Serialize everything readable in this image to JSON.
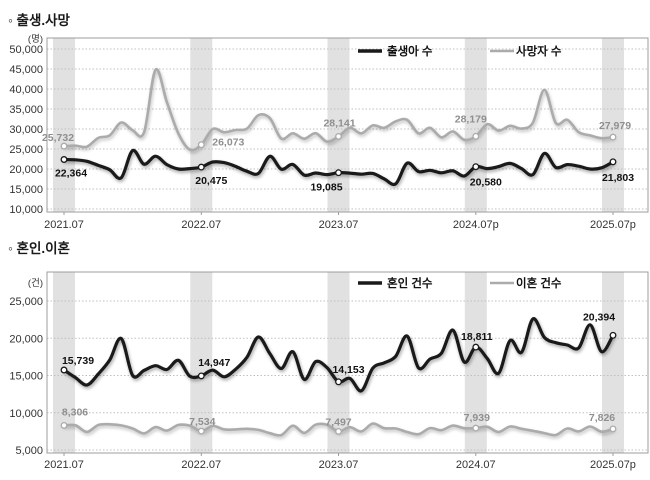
{
  "colors": {
    "line_primary": "#1a1a1a",
    "line_secondary": "#ababab",
    "band": "#e1e1e1",
    "grid": "#c0c0c0",
    "border": "#9c9c9c",
    "text": "#333333",
    "label_secondary": "#8f8f8f"
  },
  "chart_data": [
    {
      "type": "line",
      "heading": "◦ 출생.사망",
      "title": "출생.사망",
      "unit_label": "(명)",
      "ylim": [
        10000,
        50000
      ],
      "y_tick_values": [
        50000,
        45000,
        40000,
        35000,
        30000,
        25000,
        20000,
        15000,
        10000
      ],
      "grid": "dotted-horizontal",
      "legend_position": "top-inside",
      "x": [
        "2021.07",
        "2021.08",
        "2021.09",
        "2021.10",
        "2021.11",
        "2021.12",
        "2022.01",
        "2022.02",
        "2022.03",
        "2022.04",
        "2022.05",
        "2022.06",
        "2022.07",
        "2022.08",
        "2022.09",
        "2022.10",
        "2022.11",
        "2022.12",
        "2023.01",
        "2023.02",
        "2023.03",
        "2023.04",
        "2023.05",
        "2023.06",
        "2023.07",
        "2023.08",
        "2023.09",
        "2023.10",
        "2023.11",
        "2023.12",
        "2024.01",
        "2024.02",
        "2024.03",
        "2024.04",
        "2024.05",
        "2024.06",
        "2024.07",
        "2024.08",
        "2024.09",
        "2024.10",
        "2024.11",
        "2024.12",
        "2025.01",
        "2025.02",
        "2025.03",
        "2025.04",
        "2025.05",
        "2025.06",
        "2025.07"
      ],
      "x_tick_labels": [
        "2021.07",
        "2022.07",
        "2023.07",
        "2024.07p",
        "2025.07p"
      ],
      "x_tick_indices": [
        0,
        12,
        24,
        36,
        48
      ],
      "highlight_band_indices": [
        0,
        12,
        24,
        36,
        48
      ],
      "legend": [
        {
          "label": "출생아 수",
          "role": "primary"
        },
        {
          "label": "사망자 수",
          "role": "secondary"
        }
      ],
      "series": [
        {
          "name": "출생아 수",
          "role": "primary",
          "values": [
            22364,
            22290,
            21920,
            20900,
            19800,
            17800,
            24598,
            21200,
            23200,
            21100,
            20000,
            20100,
            20475,
            21750,
            21600,
            20650,
            19430,
            18900,
            23180,
            19940,
            21140,
            18480,
            18990,
            18610,
            19085,
            18980,
            18710,
            18900,
            17530,
            16300,
            21440,
            19360,
            19670,
            19050,
            19550,
            18240,
            20580,
            20100,
            20600,
            21400,
            20100,
            18600,
            23900,
            20400,
            21100,
            20700,
            20000,
            20300,
            21803
          ]
        },
        {
          "name": "사망자 수",
          "role": "secondary",
          "values": [
            25732,
            25820,
            25570,
            27780,
            28430,
            31630,
            29690,
            29190,
            44800,
            36700,
            28860,
            24850,
            26073,
            30000,
            29200,
            29760,
            30110,
            33440,
            32700,
            27600,
            28920,
            27580,
            28960,
            26820,
            28141,
            30300,
            28900,
            30900,
            30300,
            31900,
            32300,
            28900,
            30300,
            27900,
            29400,
            27300,
            28179,
            31200,
            29600,
            30800,
            30100,
            31600,
            39800,
            31500,
            32300,
            29200,
            28400,
            27700,
            27979
          ]
        }
      ],
      "point_labels": [
        {
          "series": 1,
          "index": 0,
          "text": "25,732"
        },
        {
          "series": 0,
          "index": 0,
          "text": "22,364"
        },
        {
          "series": 1,
          "index": 12,
          "text": "26,073"
        },
        {
          "series": 0,
          "index": 12,
          "text": "20,475"
        },
        {
          "series": 1,
          "index": 24,
          "text": "28,141"
        },
        {
          "series": 0,
          "index": 24,
          "text": "19,085"
        },
        {
          "series": 1,
          "index": 36,
          "text": "28,179"
        },
        {
          "series": 0,
          "index": 36,
          "text": "20,580"
        },
        {
          "series": 1,
          "index": 48,
          "text": "27,979"
        },
        {
          "series": 0,
          "index": 48,
          "text": "21,803"
        }
      ]
    },
    {
      "type": "line",
      "heading": "◦ 혼인.이혼",
      "title": "혼인.이혼",
      "unit_label": "(건)",
      "ylim": [
        5000,
        25000
      ],
      "y_tick_values": [
        25000,
        20000,
        15000,
        10000,
        5000
      ],
      "grid": "dotted-horizontal",
      "legend_position": "top-inside",
      "x": [
        "2021.07",
        "2021.08",
        "2021.09",
        "2021.10",
        "2021.11",
        "2021.12",
        "2022.01",
        "2022.02",
        "2022.03",
        "2022.04",
        "2022.05",
        "2022.06",
        "2022.07",
        "2022.08",
        "2022.09",
        "2022.10",
        "2022.11",
        "2022.12",
        "2023.01",
        "2023.02",
        "2023.03",
        "2023.04",
        "2023.05",
        "2023.06",
        "2023.07",
        "2023.08",
        "2023.09",
        "2023.10",
        "2023.11",
        "2023.12",
        "2024.01",
        "2024.02",
        "2024.03",
        "2024.04",
        "2024.05",
        "2024.06",
        "2024.07",
        "2024.08",
        "2024.09",
        "2024.10",
        "2024.11",
        "2024.12",
        "2025.01",
        "2025.02",
        "2025.03",
        "2025.04",
        "2025.05",
        "2025.06",
        "2025.07"
      ],
      "x_tick_labels": [
        "2021.07",
        "2022.07",
        "2023.07",
        "2024.07",
        "2025.07p"
      ],
      "x_tick_indices": [
        0,
        12,
        24,
        36,
        48
      ],
      "highlight_band_indices": [
        0,
        12,
        24,
        36,
        48
      ],
      "legend": [
        {
          "label": "혼인 건수",
          "role": "primary"
        },
        {
          "label": "이혼 건수",
          "role": "secondary"
        }
      ],
      "series": [
        {
          "name": "혼인 건수",
          "role": "primary",
          "values": [
            15739,
            14720,
            13730,
            15200,
            17090,
            19960,
            15020,
            15680,
            16320,
            15800,
            17040,
            14900,
            14947,
            15720,
            14820,
            15830,
            17460,
            20170,
            17930,
            15940,
            18190,
            14480,
            16850,
            16050,
            14153,
            14610,
            12940,
            15990,
            16700,
            17580,
            20300,
            16000,
            17200,
            18000,
            21100,
            16800,
            18811,
            17300,
            15300,
            19700,
            18100,
            22600,
            20100,
            19400,
            19100,
            18700,
            21800,
            18200,
            20394
          ]
        },
        {
          "name": "이혼 건수",
          "role": "secondary",
          "values": [
            8306,
            8320,
            7430,
            8350,
            8450,
            8300,
            7880,
            7230,
            8080,
            7610,
            8370,
            8280,
            7534,
            8230,
            7760,
            7770,
            7850,
            7700,
            7250,
            7000,
            8260,
            7290,
            8390,
            8400,
            7497,
            8060,
            7500,
            8540,
            7920,
            7890,
            7420,
            7120,
            7940,
            7660,
            8270,
            7920,
            7939,
            8120,
            7410,
            8160,
            7850,
            7580,
            7270,
            7020,
            7890,
            7490,
            8150,
            7450,
            7826
          ]
        }
      ],
      "point_labels": [
        {
          "series": 0,
          "index": 0,
          "text": "15,739"
        },
        {
          "series": 1,
          "index": 0,
          "text": "8,306"
        },
        {
          "series": 0,
          "index": 12,
          "text": "14,947"
        },
        {
          "series": 1,
          "index": 12,
          "text": "7,534"
        },
        {
          "series": 0,
          "index": 24,
          "text": "14,153"
        },
        {
          "series": 1,
          "index": 24,
          "text": "7,497"
        },
        {
          "series": 0,
          "index": 36,
          "text": "18,811"
        },
        {
          "series": 1,
          "index": 36,
          "text": "7,939"
        },
        {
          "series": 0,
          "index": 48,
          "text": "20,394"
        },
        {
          "series": 1,
          "index": 48,
          "text": "7,826"
        }
      ]
    }
  ]
}
